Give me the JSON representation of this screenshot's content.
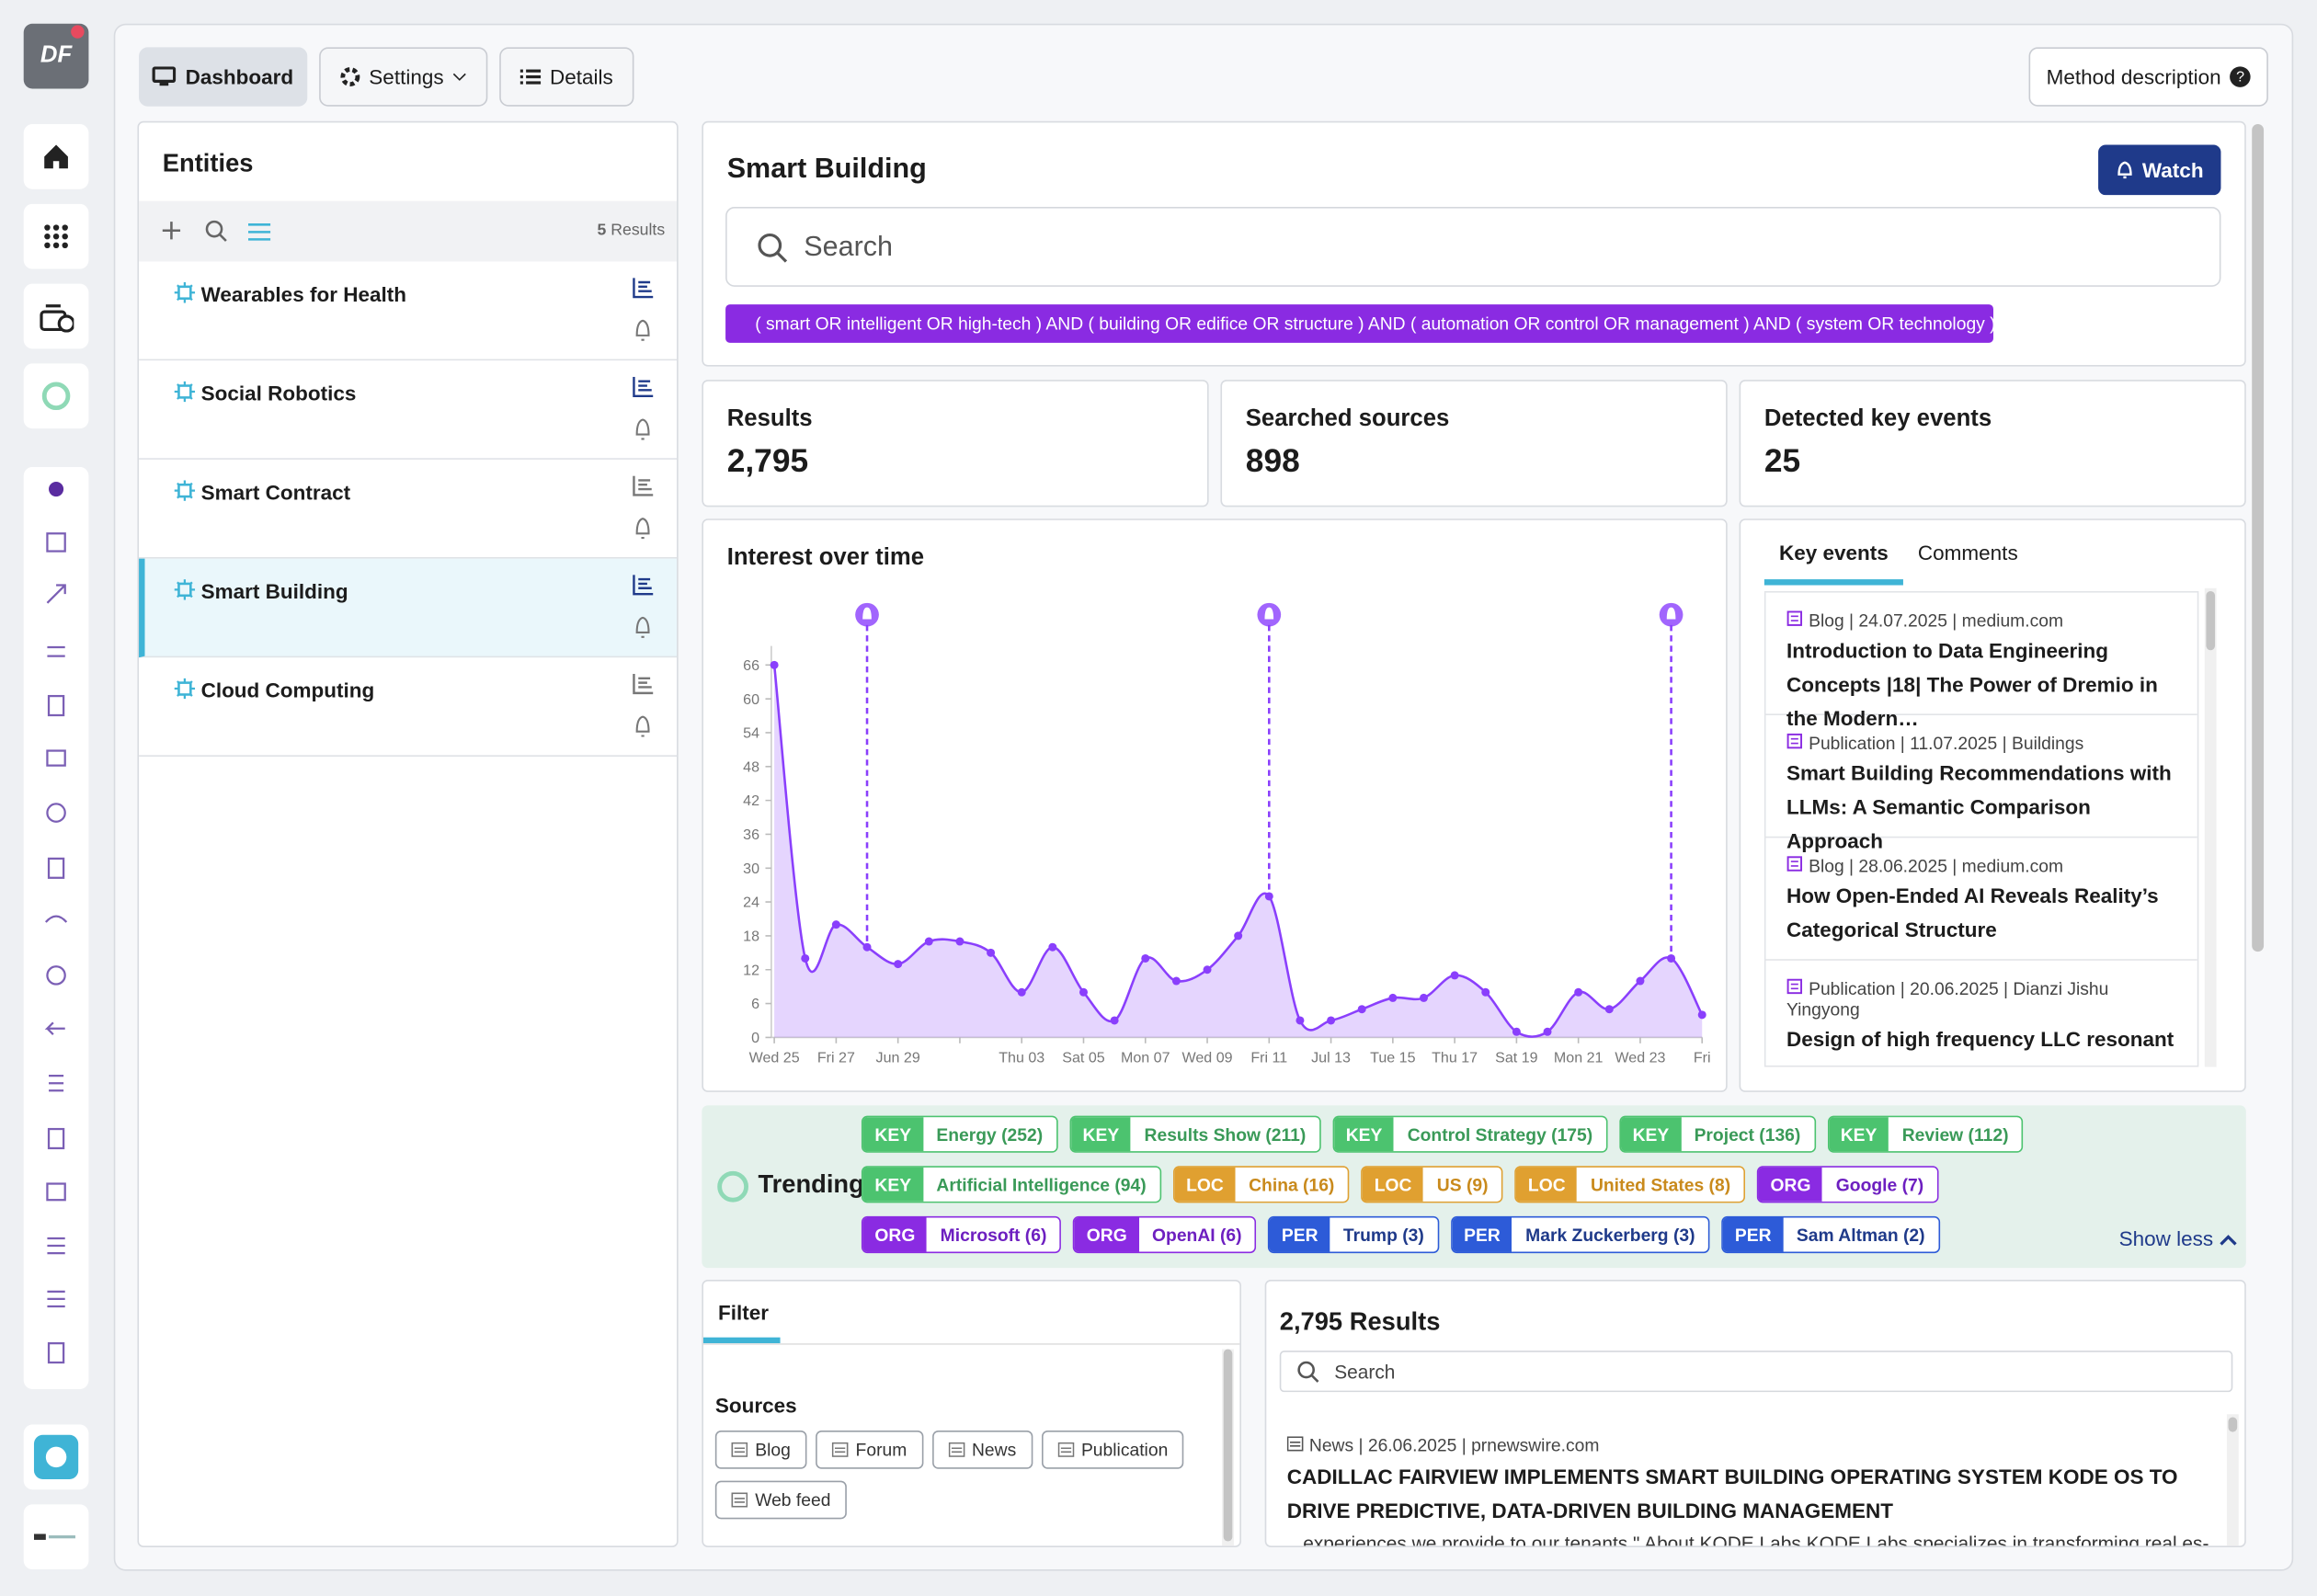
{
  "avatar": "DF",
  "nav": {
    "dashboard": "Dashboard",
    "settings": "Settings",
    "details": "Details",
    "method": "Method description"
  },
  "entities": {
    "title": "Entities",
    "count": 5,
    "count_label": "Results",
    "items": [
      "Wearables for Health",
      "Social Robotics",
      "Smart Contract",
      "Smart Building",
      "Cloud Computing"
    ],
    "selected": 3
  },
  "topic": {
    "title": "Smart Building",
    "watch": "Watch",
    "search": "Search",
    "query": "( smart OR intelligent OR high-tech ) AND ( building OR edifice OR structure ) AND ( automation OR control OR management ) AND ( system OR technology )"
  },
  "stats": [
    {
      "label": "Results",
      "value": "2,795"
    },
    {
      "label": "Searched sources",
      "value": "898"
    },
    {
      "label": "Detected key events",
      "value": "25"
    }
  ],
  "interest_chart": {
    "type": "area",
    "title": "Interest over time",
    "categories": [
      "Wed 25",
      null,
      "Fri 27",
      null,
      "Jun 29",
      null,
      null,
      null,
      "Thu 03",
      null,
      "Sat 05",
      null,
      "Mon 07",
      null,
      "Wed 09",
      null,
      "Fri 11",
      null,
      "Jul 13",
      null,
      "Tue 15",
      null,
      "Thu 17",
      null,
      "Sat 19",
      null,
      "Mon 21",
      null,
      "Wed 23",
      null,
      "Fri"
    ],
    "values": [
      66,
      14,
      20,
      16,
      13,
      17,
      17,
      15,
      8,
      16,
      8,
      3,
      14,
      10,
      12,
      18,
      25,
      3,
      3,
      5,
      7,
      7,
      11,
      8,
      1,
      1,
      8,
      5,
      10,
      14,
      4
    ],
    "events": [
      3,
      16,
      29
    ],
    "color": "#8a3ffc",
    "ylim": [
      0,
      72
    ],
    "yticks": [
      0,
      6,
      12,
      18,
      24,
      30,
      36,
      42,
      48,
      54,
      60,
      66
    ]
  },
  "key_events": {
    "tabs": [
      "Key events",
      "Comments"
    ],
    "active": 0,
    "items": [
      {
        "meta": "Blog | 24.07.2025 | medium.com",
        "title": "Introduction to Data Engineering Concepts |18| The Power of Dremio in the Modern…"
      },
      {
        "meta": "Publication | 11.07.2025 | Buildings",
        "title": "Smart Building Recommendations with LLMs: A Semantic Comparison Approach"
      },
      {
        "meta": "Blog | 28.06.2025 | medium.com",
        "title": "How Open-Ended AI Reveals Reality’s Categorical Structure"
      },
      {
        "meta": "Publication | 20.06.2025 | Dianzi Jishu Yingyong",
        "title": "Design of high frequency LLC resonant circuit based on double loop control"
      }
    ]
  },
  "trending": {
    "title": "Trending",
    "toggle": "Show less",
    "tags": [
      {
        "type": "KEY",
        "label": "Energy (252)"
      },
      {
        "type": "KEY",
        "label": "Results Show (211)"
      },
      {
        "type": "KEY",
        "label": "Control Strategy (175)"
      },
      {
        "type": "KEY",
        "label": "Project (136)"
      },
      {
        "type": "KEY",
        "label": "Review (112)"
      },
      {
        "type": "KEY",
        "label": "Artificial Intelligence (94)"
      },
      {
        "type": "LOC",
        "label": "China (16)"
      },
      {
        "type": "LOC",
        "label": "US (9)"
      },
      {
        "type": "LOC",
        "label": "United States (8)"
      },
      {
        "type": "ORG",
        "label": "Google (7)"
      },
      {
        "type": "ORG",
        "label": "Microsoft (6)"
      },
      {
        "type": "ORG",
        "label": "OpenAI (6)"
      },
      {
        "type": "PER",
        "label": "Trump (3)"
      },
      {
        "type": "PER",
        "label": "Mark Zuckerberg (3)"
      },
      {
        "type": "PER",
        "label": "Sam Altman (2)"
      }
    ]
  },
  "filter": {
    "title": "Filter",
    "sources_title": "Sources",
    "sources": [
      "Blog",
      "Forum",
      "News",
      "Publication",
      "Web feed"
    ]
  },
  "results": {
    "title": "2,795 Results",
    "search": "Search",
    "items": [
      {
        "meta": "News | 26.06.2025 | prnewswire.com",
        "title": "CADILLAC FAIRVIEW IMPLEMENTS SMART BUILDING OPERATING SYSTEM KODE OS TO DRIVE PREDICTIVE, DATA-DRIVEN BUILDING MANAGEMENT",
        "snippet": "...experiences we provide to our tenants.\" About KODE Labs KODE Labs specializes in transforming real es-"
      }
    ]
  }
}
